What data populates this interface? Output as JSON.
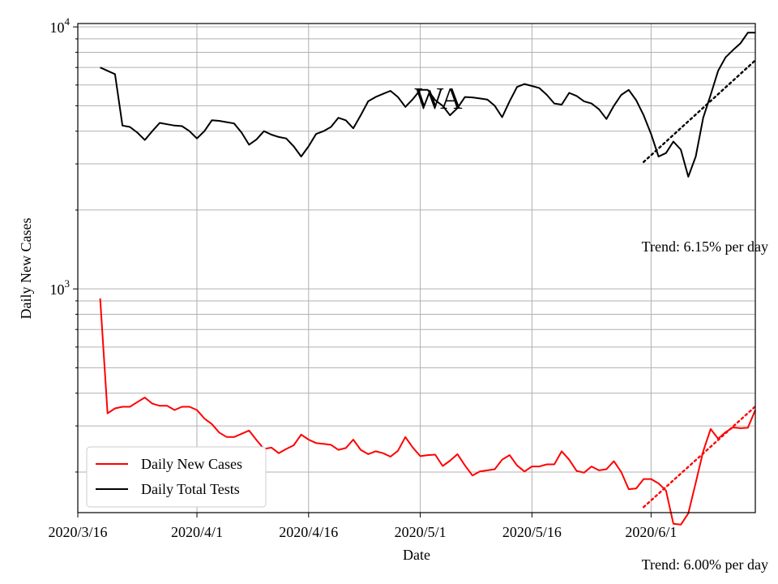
{
  "chart_data": {
    "type": "line",
    "title": "WA",
    "xlabel": "Date",
    "ylabel": "Daily New Cases",
    "yscale": "log",
    "ylim": [
      140,
      10300
    ],
    "xlim": [
      "2020-03-16",
      "2020-06-15"
    ],
    "grid": true,
    "legend_placement": "lower-left",
    "x_ticks": [
      "2020/3/16",
      "2020/4/1",
      "2020/4/16",
      "2020/5/1",
      "2020/5/16",
      "2020/6/1"
    ],
    "x_tick_dates": [
      "2020-03-16",
      "2020-04-01",
      "2020-04-16",
      "2020-05-01",
      "2020-05-16",
      "2020-06-01"
    ],
    "y_tick_labels": [
      {
        "value": 1000,
        "base": "10",
        "exp": "3"
      },
      {
        "value": 10000,
        "base": "10",
        "exp": "4"
      }
    ],
    "series": [
      {
        "name": "Daily New Cases",
        "color": "#ff0000",
        "style": "solid",
        "x": [
          "2020-03-19",
          "2020-03-20",
          "2020-03-21",
          "2020-03-22",
          "2020-03-23",
          "2020-03-24",
          "2020-03-25",
          "2020-03-26",
          "2020-03-27",
          "2020-03-28",
          "2020-03-29",
          "2020-03-30",
          "2020-03-31",
          "2020-04-01",
          "2020-04-02",
          "2020-04-03",
          "2020-04-04",
          "2020-04-05",
          "2020-04-06",
          "2020-04-07",
          "2020-04-08",
          "2020-04-09",
          "2020-04-10",
          "2020-04-11",
          "2020-04-12",
          "2020-04-13",
          "2020-04-14",
          "2020-04-15",
          "2020-04-16",
          "2020-04-17",
          "2020-04-18",
          "2020-04-19",
          "2020-04-20",
          "2020-04-21",
          "2020-04-22",
          "2020-04-23",
          "2020-04-24",
          "2020-04-25",
          "2020-04-26",
          "2020-04-27",
          "2020-04-28",
          "2020-04-29",
          "2020-04-30",
          "2020-05-01",
          "2020-05-02",
          "2020-05-03",
          "2020-05-04",
          "2020-05-05",
          "2020-05-06",
          "2020-05-07",
          "2020-05-08",
          "2020-05-09",
          "2020-05-10",
          "2020-05-11",
          "2020-05-12",
          "2020-05-13",
          "2020-05-14",
          "2020-05-15",
          "2020-05-16",
          "2020-05-17",
          "2020-05-18",
          "2020-05-19",
          "2020-05-20",
          "2020-05-21",
          "2020-05-22",
          "2020-05-23",
          "2020-05-24",
          "2020-05-25",
          "2020-05-26",
          "2020-05-27",
          "2020-05-28",
          "2020-05-29",
          "2020-05-30",
          "2020-05-31",
          "2020-06-01",
          "2020-06-02",
          "2020-06-03",
          "2020-06-04",
          "2020-06-05",
          "2020-06-06",
          "2020-06-07",
          "2020-06-08",
          "2020-06-09",
          "2020-06-10",
          "2020-06-11",
          "2020-06-12",
          "2020-06-13",
          "2020-06-14",
          "2020-06-15"
        ],
        "values": [
          920,
          335,
          350,
          355,
          355,
          370,
          385,
          365,
          358,
          358,
          345,
          355,
          355,
          345,
          320,
          305,
          283,
          272,
          272,
          280,
          288,
          265,
          245,
          248,
          236,
          245,
          253,
          278,
          266,
          258,
          256,
          254,
          243,
          247,
          266,
          243,
          234,
          240,
          236,
          229,
          241,
          272,
          248,
          230,
          232,
          233,
          211,
          221,
          234,
          212,
          194,
          201,
          203,
          205,
          223,
          232,
          212,
          201,
          210,
          210,
          214,
          214,
          240,
          223,
          202,
          199,
          210,
          203,
          205,
          220,
          200,
          172,
          173,
          188,
          188,
          181,
          170,
          127,
          126,
          139,
          182,
          240,
          292,
          268,
          284,
          296,
          294,
          295,
          345
        ]
      },
      {
        "name": "Daily Total Tests",
        "color": "#000000",
        "style": "solid",
        "x": [
          "2020-03-19",
          "2020-03-20",
          "2020-03-21",
          "2020-03-22",
          "2020-03-23",
          "2020-03-24",
          "2020-03-25",
          "2020-03-26",
          "2020-03-27",
          "2020-03-28",
          "2020-03-29",
          "2020-03-30",
          "2020-03-31",
          "2020-04-01",
          "2020-04-02",
          "2020-04-03",
          "2020-04-04",
          "2020-04-05",
          "2020-04-06",
          "2020-04-07",
          "2020-04-08",
          "2020-04-09",
          "2020-04-10",
          "2020-04-11",
          "2020-04-12",
          "2020-04-13",
          "2020-04-14",
          "2020-04-15",
          "2020-04-16",
          "2020-04-17",
          "2020-04-18",
          "2020-04-19",
          "2020-04-20",
          "2020-04-21",
          "2020-04-22",
          "2020-04-23",
          "2020-04-24",
          "2020-04-25",
          "2020-04-26",
          "2020-04-27",
          "2020-04-28",
          "2020-04-29",
          "2020-04-30",
          "2020-05-01",
          "2020-05-02",
          "2020-05-03",
          "2020-05-04",
          "2020-05-05",
          "2020-05-06",
          "2020-05-07",
          "2020-05-08",
          "2020-05-09",
          "2020-05-10",
          "2020-05-11",
          "2020-05-12",
          "2020-05-13",
          "2020-05-14",
          "2020-05-15",
          "2020-05-16",
          "2020-05-17",
          "2020-05-18",
          "2020-05-19",
          "2020-05-20",
          "2020-05-21",
          "2020-05-22",
          "2020-05-23",
          "2020-05-24",
          "2020-05-25",
          "2020-05-26",
          "2020-05-27",
          "2020-05-28",
          "2020-05-29",
          "2020-05-30",
          "2020-05-31",
          "2020-06-01",
          "2020-06-02",
          "2020-06-03",
          "2020-06-04",
          "2020-06-05",
          "2020-06-06",
          "2020-06-07",
          "2020-06-08",
          "2020-06-09",
          "2020-06-10",
          "2020-06-11",
          "2020-06-12",
          "2020-06-13",
          "2020-06-14",
          "2020-06-15"
        ],
        "values": [
          7000,
          6800,
          6600,
          4200,
          4150,
          3950,
          3700,
          4000,
          4300,
          4250,
          4200,
          4180,
          4000,
          3750,
          4000,
          4400,
          4380,
          4330,
          4280,
          3950,
          3550,
          3720,
          4000,
          3880,
          3800,
          3750,
          3500,
          3200,
          3500,
          3900,
          4000,
          4150,
          4500,
          4400,
          4100,
          4600,
          5200,
          5400,
          5550,
          5700,
          5400,
          4950,
          5300,
          5750,
          5750,
          5250,
          5000,
          4600,
          4900,
          5400,
          5380,
          5330,
          5280,
          5000,
          4520,
          5200,
          5900,
          6050,
          5950,
          5840,
          5500,
          5100,
          5050,
          5600,
          5450,
          5200,
          5100,
          4850,
          4450,
          5000,
          5500,
          5750,
          5250,
          4600,
          3900,
          3200,
          3300,
          3650,
          3400,
          2680,
          3200,
          4500,
          5500,
          6800,
          7650,
          8150,
          8650,
          9500,
          9500
        ]
      },
      {
        "name": "Trend cases",
        "color": "#ff0000",
        "style": "dotted",
        "x": [
          "2020-05-31",
          "2020-06-15"
        ],
        "values": [
          147,
          356
        ]
      },
      {
        "name": "Trend tests",
        "color": "#000000",
        "style": "dotted",
        "x": [
          "2020-05-31",
          "2020-06-15"
        ],
        "values": [
          3050,
          7450
        ]
      }
    ],
    "annotations": [
      {
        "text": "Trend: 6.15% per day",
        "anchor": "right-middle"
      },
      {
        "text": "Trend: 6.00% per day",
        "anchor": "bottom-right"
      }
    ]
  }
}
